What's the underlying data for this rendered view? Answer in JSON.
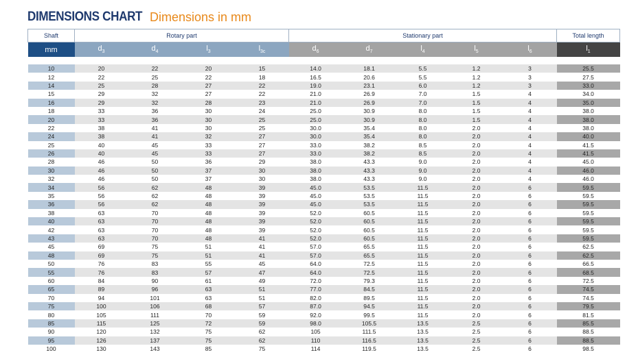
{
  "title": {
    "main": "DIMENSIONS CHART",
    "sub": "Dimensions in mm"
  },
  "groups": {
    "shaft": "Shaft",
    "rotary": "Rotary part",
    "stationary": "Stationary part",
    "total": "Total length"
  },
  "columns": {
    "shaft": "mm",
    "d3": {
      "base": "d",
      "sub": "3"
    },
    "d4": {
      "base": "d",
      "sub": "4"
    },
    "l3": {
      "base": "l",
      "sub": "3"
    },
    "l3c": {
      "base": "l",
      "sub": "3c"
    },
    "d6": {
      "base": "d",
      "sub": "6"
    },
    "d7": {
      "base": "d",
      "sub": "7"
    },
    "l4": {
      "base": "l",
      "sub": "4"
    },
    "l5": {
      "base": "l",
      "sub": "5"
    },
    "l6": {
      "base": "l",
      "sub": "6"
    },
    "l1": {
      "base": "l",
      "sub": "1"
    }
  },
  "rows": [
    [
      "10",
      "20",
      "22",
      "20",
      "15",
      "14.0",
      "18.1",
      "5.5",
      "1.2",
      "3",
      "25.5"
    ],
    [
      "12",
      "22",
      "25",
      "22",
      "18",
      "16.5",
      "20.6",
      "5.5",
      "1.2",
      "3",
      "27.5"
    ],
    [
      "14",
      "25",
      "28",
      "27",
      "22",
      "19.0",
      "23.1",
      "6.0",
      "1.2",
      "3",
      "33.0"
    ],
    [
      "15",
      "29",
      "32",
      "27",
      "22",
      "21.0",
      "26.9",
      "7.0",
      "1.5",
      "4",
      "34.0"
    ],
    [
      "16",
      "29",
      "32",
      "28",
      "23",
      "21.0",
      "26.9",
      "7.0",
      "1.5",
      "4",
      "35.0"
    ],
    [
      "18",
      "33",
      "36",
      "30",
      "24",
      "25.0",
      "30.9",
      "8.0",
      "1.5",
      "4",
      "38.0"
    ],
    [
      "20",
      "33",
      "36",
      "30",
      "25",
      "25.0",
      "30.9",
      "8.0",
      "1.5",
      "4",
      "38.0"
    ],
    [
      "22",
      "38",
      "41",
      "30",
      "25",
      "30.0",
      "35.4",
      "8.0",
      "2.0",
      "4",
      "38.0"
    ],
    [
      "24",
      "38",
      "41",
      "32",
      "27",
      "30.0",
      "35.4",
      "8.0",
      "2.0",
      "4",
      "40.0"
    ],
    [
      "25",
      "40",
      "45",
      "33",
      "27",
      "33.0",
      "38.2",
      "8.5",
      "2.0",
      "4",
      "41.5"
    ],
    [
      "26",
      "40",
      "45",
      "33",
      "27",
      "33.0",
      "38.2",
      "8.5",
      "2.0",
      "4",
      "41.5"
    ],
    [
      "28",
      "46",
      "50",
      "36",
      "29",
      "38.0",
      "43.3",
      "9.0",
      "2.0",
      "4",
      "45.0"
    ],
    [
      "30",
      "46",
      "50",
      "37",
      "30",
      "38.0",
      "43.3",
      "9.0",
      "2.0",
      "4",
      "46.0"
    ],
    [
      "32",
      "46",
      "50",
      "37",
      "30",
      "38.0",
      "43.3",
      "9.0",
      "2.0",
      "4",
      "46.0"
    ],
    [
      "34",
      "56",
      "62",
      "48",
      "39",
      "45.0",
      "53.5",
      "11.5",
      "2.0",
      "6",
      "59.5"
    ],
    [
      "35",
      "56",
      "62",
      "48",
      "39",
      "45.0",
      "53.5",
      "11.5",
      "2.0",
      "6",
      "59.5"
    ],
    [
      "36",
      "56",
      "62",
      "48",
      "39",
      "45.0",
      "53.5",
      "11.5",
      "2.0",
      "6",
      "59.5"
    ],
    [
      "38",
      "63",
      "70",
      "48",
      "39",
      "52.0",
      "60.5",
      "11.5",
      "2.0",
      "6",
      "59.5"
    ],
    [
      "40",
      "63",
      "70",
      "48",
      "39",
      "52.0",
      "60.5",
      "11.5",
      "2.0",
      "6",
      "59.5"
    ],
    [
      "42",
      "63",
      "70",
      "48",
      "39",
      "52.0",
      "60.5",
      "11.5",
      "2.0",
      "6",
      "59.5"
    ],
    [
      "43",
      "63",
      "70",
      "48",
      "41",
      "52.0",
      "60.5",
      "11.5",
      "2.0",
      "6",
      "59.5"
    ],
    [
      "45",
      "69",
      "75",
      "51",
      "41",
      "57.0",
      "65.5",
      "11.5",
      "2.0",
      "6",
      "62.5"
    ],
    [
      "48",
      "69",
      "75",
      "51",
      "41",
      "57.0",
      "65.5",
      "11.5",
      "2.0",
      "6",
      "62.5"
    ],
    [
      "50",
      "76",
      "83",
      "55",
      "45",
      "64.0",
      "72.5",
      "11.5",
      "2.0",
      "6",
      "66.5"
    ],
    [
      "55",
      "76",
      "83",
      "57",
      "47",
      "64.0",
      "72.5",
      "11.5",
      "2.0",
      "6",
      "68.5"
    ],
    [
      "60",
      "84",
      "90",
      "61",
      "49",
      "72.0",
      "79.3",
      "11.5",
      "2.0",
      "6",
      "72.5"
    ],
    [
      "65",
      "89",
      "96",
      "63",
      "51",
      "77.0",
      "84.5",
      "11.5",
      "2.0",
      "6",
      "74.5"
    ],
    [
      "70",
      "94",
      "101",
      "63",
      "51",
      "82.0",
      "89.5",
      "11.5",
      "2.0",
      "6",
      "74.5"
    ],
    [
      "75",
      "100",
      "106",
      "68",
      "57",
      "87.0",
      "94.5",
      "11.5",
      "2.0",
      "6",
      "79.5"
    ],
    [
      "80",
      "105",
      "111",
      "70",
      "59",
      "92.0",
      "99.5",
      "11.5",
      "2.0",
      "6",
      "81.5"
    ],
    [
      "85",
      "115",
      "125",
      "72",
      "59",
      "98.0",
      "105.5",
      "13.5",
      "2.5",
      "6",
      "85.5"
    ],
    [
      "90",
      "120",
      "132",
      "75",
      "62",
      "105",
      "111.5",
      "13.5",
      "2.5",
      "6",
      "88.5"
    ],
    [
      "95",
      "126",
      "137",
      "75",
      "62",
      "110",
      "116.5",
      "13.5",
      "2.5",
      "6",
      "88.5"
    ],
    [
      "100",
      "130",
      "143",
      "85",
      "75",
      "114",
      "119.5",
      "13.5",
      "2.5",
      "6",
      "98.5"
    ]
  ]
}
